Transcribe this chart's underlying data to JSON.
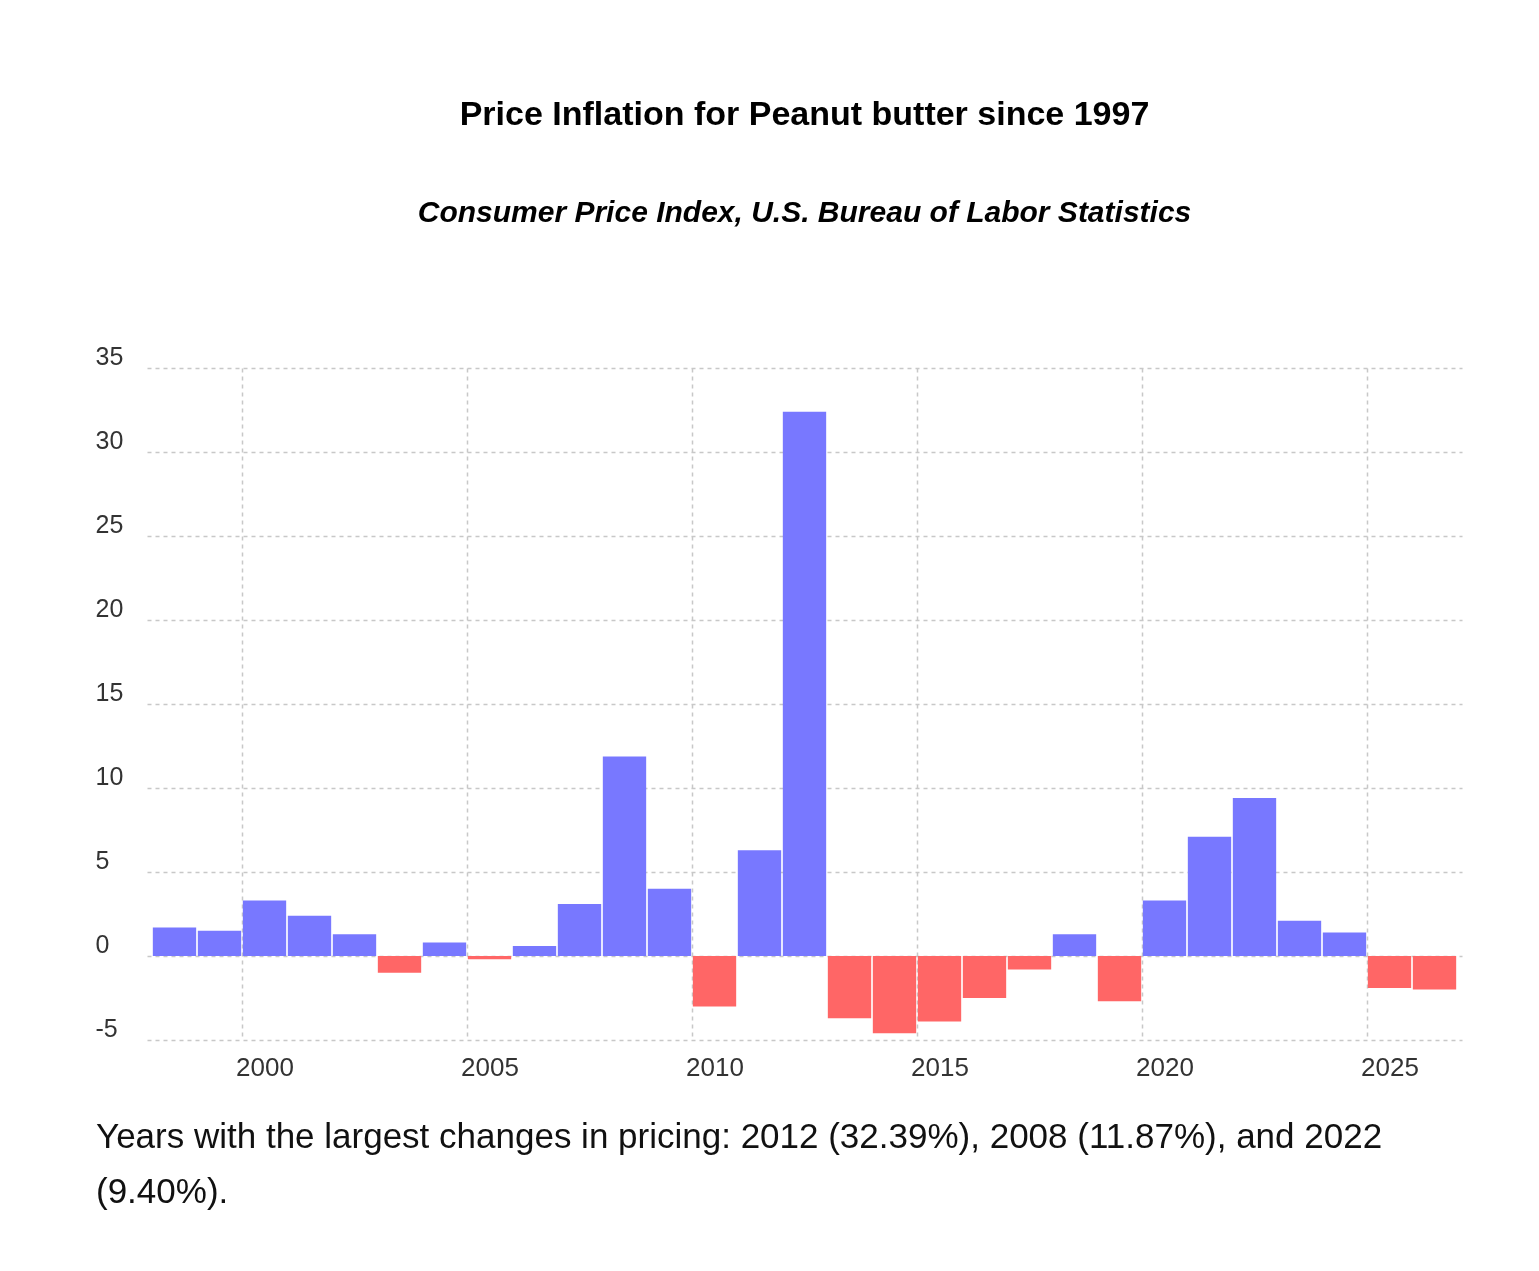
{
  "chart_data": {
    "type": "bar",
    "title": "Price Inflation for Peanut butter since 1997",
    "subtitle": "Consumer Price Index, U.S. Bureau of Labor Statistics",
    "x": [
      1998,
      1999,
      2000,
      2001,
      2002,
      2003,
      2004,
      2005,
      2006,
      2007,
      2008,
      2009,
      2010,
      2011,
      2012,
      2013,
      2014,
      2015,
      2016,
      2017,
      2018,
      2019,
      2020,
      2021,
      2022,
      2023,
      2024,
      2025,
      2026
    ],
    "values": [
      1.7,
      1.5,
      3.3,
      2.4,
      1.3,
      -1.0,
      0.8,
      -0.2,
      0.6,
      3.1,
      11.87,
      4.0,
      -3.0,
      6.3,
      32.39,
      -3.7,
      -4.6,
      -3.9,
      -2.5,
      -0.8,
      1.3,
      -2.7,
      3.3,
      7.1,
      9.4,
      2.1,
      1.4,
      -1.9,
      -2.0
    ],
    "colors": [
      "#7878ff",
      "#7878ff",
      "#7878ff",
      "#7878ff",
      "#7878ff",
      "#ff6666",
      "#7878ff",
      "#ff6666",
      "#7878ff",
      "#7878ff",
      "#7878ff",
      "#7878ff",
      "#ff6666",
      "#7878ff",
      "#7878ff",
      "#ff6666",
      "#ff6666",
      "#ff6666",
      "#ff6666",
      "#ff6666",
      "#7878ff",
      "#ff6666",
      "#7878ff",
      "#7878ff",
      "#7878ff",
      "#7878ff",
      "#7878ff",
      "#ff6666",
      "#ff6666"
    ],
    "xlim": [
      1997.5,
      2026.5
    ],
    "ylim": [
      -5,
      35
    ],
    "xticks": [
      2000,
      2005,
      2010,
      2015,
      2020,
      2025
    ],
    "yticks": [
      -5,
      0,
      5,
      10,
      15,
      20,
      25,
      30,
      35
    ],
    "grid": true,
    "annotations": [
      "Years with the largest changes in pricing: 2012 (32.39%), 2008 (11.87%), and 2022 (9.40%)."
    ]
  }
}
